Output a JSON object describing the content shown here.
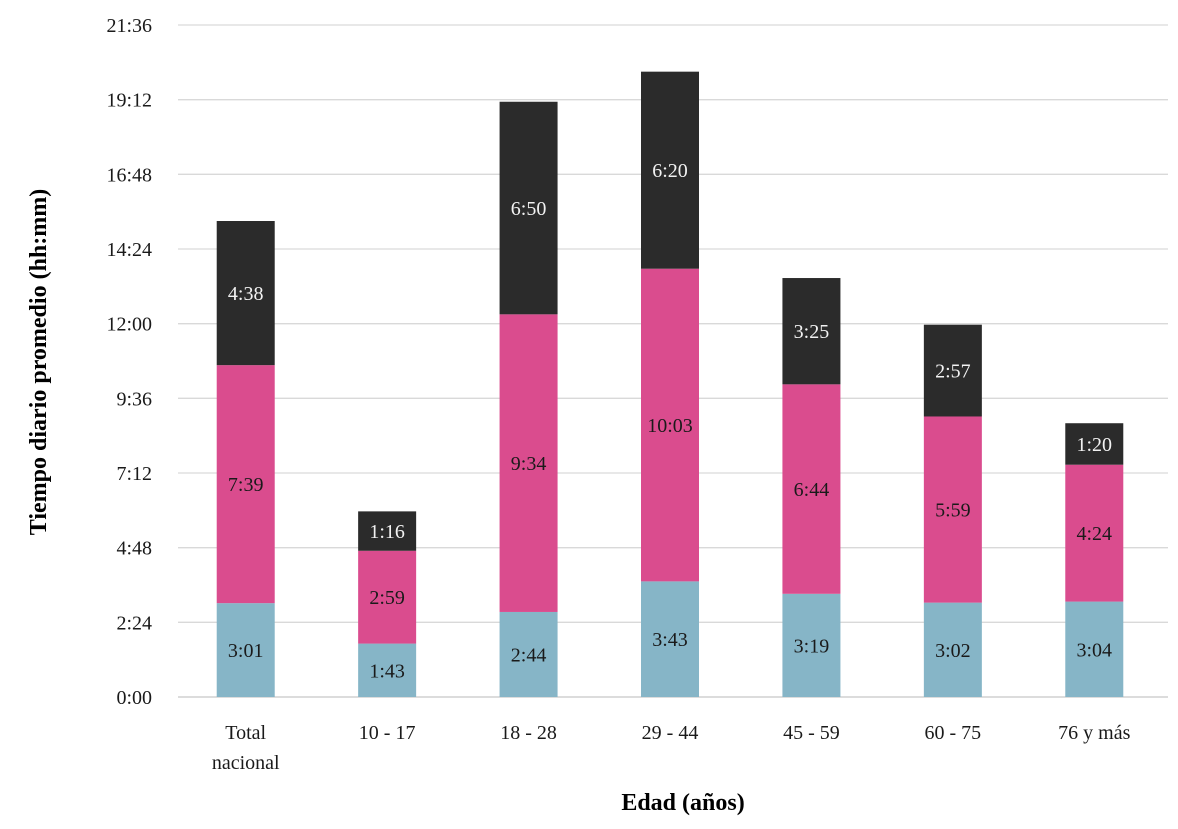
{
  "chart_data": {
    "type": "bar",
    "stacked": true,
    "xlabel": "Edad (años)",
    "ylabel": "Tiempo diario promedio (hh:mm)",
    "categories": [
      [
        "Total",
        "nacional"
      ],
      [
        "10 - 17"
      ],
      [
        "18 - 28"
      ],
      [
        "29 - 44"
      ],
      [
        "45  - 59"
      ],
      [
        "60 - 75"
      ],
      [
        "76 y más"
      ]
    ],
    "y_ticks": [
      "0:00",
      "2:24",
      "4:48",
      "7:12",
      "9:36",
      "12:00",
      "14:24",
      "16:48",
      "19:12",
      "21:36"
    ],
    "ylim_minutes": [
      0,
      1296
    ],
    "grid": true,
    "legend": "none",
    "series": [
      {
        "color": "#86b5c7",
        "label_color": "#1a1a1a",
        "values": [
          "3:01",
          "1:43",
          "2:44",
          "3:43",
          "3:19",
          "3:02",
          "3:04"
        ]
      },
      {
        "color": "#da4c8e",
        "label_color": "#1a1a1a",
        "values": [
          "7:39",
          "2:59",
          "9:34",
          "10:03",
          "6:44",
          "5:59",
          "4:24"
        ]
      },
      {
        "color": "#2b2b2b",
        "label_color": "#f2f2f2",
        "values": [
          "4:38",
          "1:16",
          "6:50",
          "6:20",
          "3:25",
          "2:57",
          "1:20"
        ]
      }
    ]
  }
}
